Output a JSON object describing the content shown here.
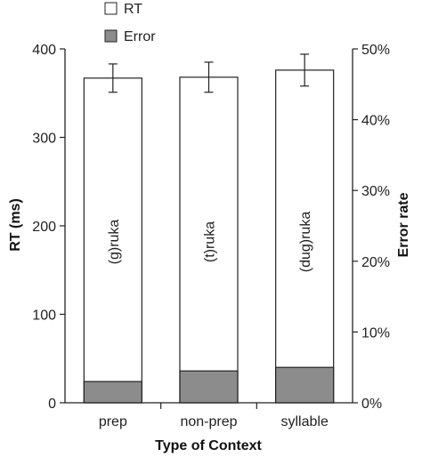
{
  "chart_data": {
    "type": "bar",
    "categories": [
      "prep",
      "non-prep",
      "syllable"
    ],
    "bar_labels": [
      "(g)ruka",
      "(t)ruka",
      "(dug)ruka"
    ],
    "series": [
      {
        "name": "RT",
        "axis": "left",
        "values": [
          367,
          368,
          376
        ],
        "errors": [
          16,
          17,
          18
        ],
        "color": "#ffffff"
      },
      {
        "name": "Error",
        "axis": "right",
        "values": [
          3.0,
          4.5,
          5.0
        ],
        "color": "#8c8c8c"
      }
    ],
    "xlabel": "Type of Context",
    "ylabel": "RT (ms)",
    "ylabel_right": "Error rate",
    "ylim": [
      0,
      400
    ],
    "ylim_right": [
      0,
      50
    ],
    "yticks": [
      "0",
      "100",
      "200",
      "300",
      "400"
    ],
    "yticks_right": [
      "0%",
      "10%",
      "20%",
      "30%",
      "40%",
      "50%"
    ],
    "legend": [
      {
        "label": "RT",
        "color": "#ffffff"
      },
      {
        "label": "Error",
        "color": "#8c8c8c"
      }
    ],
    "legend_position": "top-left"
  }
}
